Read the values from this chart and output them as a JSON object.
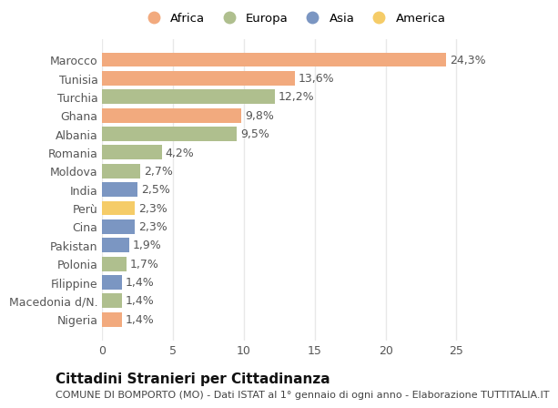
{
  "categories": [
    "Marocco",
    "Tunisia",
    "Turchia",
    "Ghana",
    "Albania",
    "Romania",
    "Moldova",
    "India",
    "Perù",
    "Cina",
    "Pakistan",
    "Polonia",
    "Filippine",
    "Macedonia d/N.",
    "Nigeria"
  ],
  "values": [
    24.3,
    13.6,
    12.2,
    9.8,
    9.5,
    4.2,
    2.7,
    2.5,
    2.3,
    2.3,
    1.9,
    1.7,
    1.4,
    1.4,
    1.4
  ],
  "labels": [
    "24,3%",
    "13,6%",
    "12,2%",
    "9,8%",
    "9,5%",
    "4,2%",
    "2,7%",
    "2,5%",
    "2,3%",
    "2,3%",
    "1,9%",
    "1,7%",
    "1,4%",
    "1,4%",
    "1,4%"
  ],
  "continents": [
    "Africa",
    "Africa",
    "Europa",
    "Africa",
    "Europa",
    "Europa",
    "Europa",
    "Asia",
    "America",
    "Asia",
    "Asia",
    "Europa",
    "Asia",
    "Europa",
    "Africa"
  ],
  "continent_colors": {
    "Africa": "#F2AA7E",
    "Europa": "#AFBF8E",
    "Asia": "#7B96C2",
    "America": "#F5CC68"
  },
  "legend_order": [
    "Africa",
    "Europa",
    "Asia",
    "America"
  ],
  "title": "Cittadini Stranieri per Cittadinanza",
  "subtitle": "COMUNE DI BOMPORTO (MO) - Dati ISTAT al 1° gennaio di ogni anno - Elaborazione TUTTITALIA.IT",
  "xlim": [
    0,
    27
  ],
  "xticks": [
    0,
    5,
    10,
    15,
    20,
    25
  ],
  "bg_color": "#FFFFFF",
  "plot_bg_color": "#FFFFFF",
  "grid_color": "#E8E8E8",
  "label_fontsize": 9,
  "tick_fontsize": 9,
  "title_fontsize": 11,
  "subtitle_fontsize": 8
}
